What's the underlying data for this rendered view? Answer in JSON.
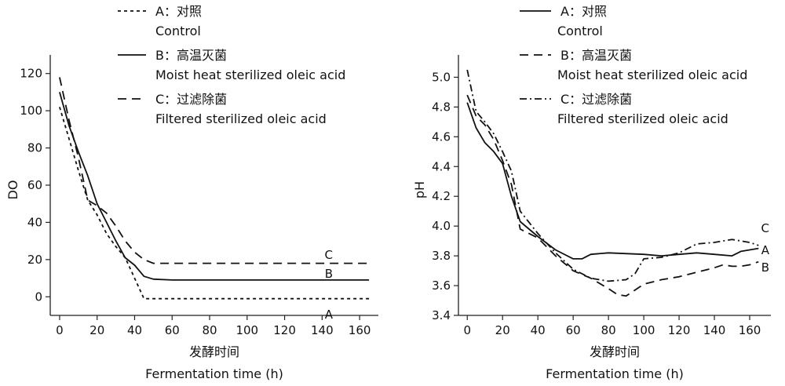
{
  "chart_data": [
    {
      "type": "line",
      "xlabel": "发酵时间",
      "xlabel_en": "Fermentation time (h)",
      "ylabel": "DO",
      "xlim": [
        -5,
        170
      ],
      "ylim": [
        -10,
        130
      ],
      "xticks": [
        0,
        20,
        40,
        60,
        80,
        100,
        120,
        140,
        160
      ],
      "yticks": [
        0,
        20,
        40,
        60,
        80,
        100,
        120
      ],
      "legend_position": "top-left",
      "series": [
        {
          "name": "A：对照",
          "name_en": "Control",
          "dash": "short-dash",
          "curve_label": "A",
          "x": [
            0,
            5,
            10,
            15,
            20,
            25,
            30,
            35,
            40,
            45,
            50,
            60,
            80,
            100,
            120,
            140,
            160,
            165
          ],
          "y": [
            102,
            85,
            68,
            52,
            44,
            34,
            27,
            21,
            10,
            -1,
            -1,
            -1,
            -1,
            -1,
            -1,
            -1,
            -1,
            -1
          ]
        },
        {
          "name": "B：高温灭菌",
          "name_en": "Moist heat sterilized oleic acid",
          "dash": "solid",
          "curve_label": "B",
          "x": [
            0,
            5,
            10,
            15,
            20,
            25,
            30,
            35,
            40,
            45,
            50,
            60,
            80,
            100,
            120,
            140,
            160,
            165
          ],
          "y": [
            110,
            92,
            78,
            65,
            50,
            40,
            30,
            21,
            17,
            11,
            9.5,
            9,
            9,
            9,
            9,
            9,
            9,
            9
          ]
        },
        {
          "name": "C：过滤除菌",
          "name_en": "Filtered sterilized oleic acid",
          "dash": "long-dash",
          "curve_label": "C",
          "x": [
            0,
            5,
            10,
            15,
            20,
            25,
            30,
            35,
            40,
            45,
            50,
            60,
            80,
            100,
            120,
            140,
            160,
            165
          ],
          "y": [
            118,
            95,
            75,
            52,
            49,
            45,
            38,
            30,
            24,
            20,
            18,
            18,
            18,
            18,
            18,
            18,
            18,
            18
          ]
        }
      ]
    },
    {
      "type": "line",
      "xlabel": "发酵时间",
      "xlabel_en": "Fermentation time (h)",
      "ylabel": "pH",
      "xlim": [
        -5,
        172
      ],
      "ylim": [
        3.4,
        5.15
      ],
      "xticks": [
        0,
        20,
        40,
        60,
        80,
        100,
        120,
        140,
        160
      ],
      "yticks": [
        3.4,
        3.6,
        3.8,
        4.0,
        4.2,
        4.4,
        4.6,
        4.8,
        5.0
      ],
      "ytick_labels": [
        "3.4",
        "3.6",
        "3.8",
        "4.0",
        "4.2",
        "4.4",
        "4.6",
        "4.8",
        "5.0"
      ],
      "legend_position": "top-left",
      "series": [
        {
          "name": "A：对照",
          "name_en": "Control",
          "dash": "solid",
          "curve_label": "A",
          "x": [
            0,
            5,
            10,
            15,
            20,
            25,
            30,
            40,
            50,
            60,
            65,
            70,
            80,
            100,
            110,
            120,
            130,
            140,
            150,
            155,
            160,
            165
          ],
          "y": [
            4.83,
            4.66,
            4.56,
            4.5,
            4.42,
            4.2,
            4.03,
            3.93,
            3.84,
            3.78,
            3.78,
            3.81,
            3.82,
            3.81,
            3.8,
            3.81,
            3.82,
            3.81,
            3.8,
            3.83,
            3.84,
            3.85
          ]
        },
        {
          "name": "B：高温灭菌",
          "name_en": "Moist heat sterilized oleic acid",
          "dash": "long-dash",
          "curve_label": "B",
          "x": [
            0,
            5,
            10,
            15,
            20,
            25,
            30,
            40,
            50,
            60,
            70,
            80,
            85,
            90,
            100,
            110,
            120,
            130,
            140,
            145,
            150,
            155,
            160,
            165
          ],
          "y": [
            4.88,
            4.74,
            4.68,
            4.58,
            4.44,
            4.28,
            3.98,
            3.92,
            3.8,
            3.7,
            3.65,
            3.58,
            3.54,
            3.53,
            3.61,
            3.64,
            3.66,
            3.69,
            3.72,
            3.74,
            3.73,
            3.73,
            3.74,
            3.76
          ]
        },
        {
          "name": "C：过滤除菌",
          "name_en": "Filtered sterilized oleic acid",
          "dash": "dash-dot",
          "curve_label": "C",
          "x": [
            0,
            5,
            10,
            15,
            20,
            25,
            30,
            40,
            50,
            60,
            70,
            80,
            90,
            95,
            100,
            110,
            120,
            130,
            140,
            150,
            160,
            165
          ],
          "y": [
            5.05,
            4.77,
            4.7,
            4.62,
            4.5,
            4.37,
            4.1,
            3.95,
            3.82,
            3.71,
            3.65,
            3.63,
            3.64,
            3.68,
            3.78,
            3.79,
            3.82,
            3.88,
            3.89,
            3.91,
            3.89,
            3.87
          ]
        }
      ]
    }
  ]
}
